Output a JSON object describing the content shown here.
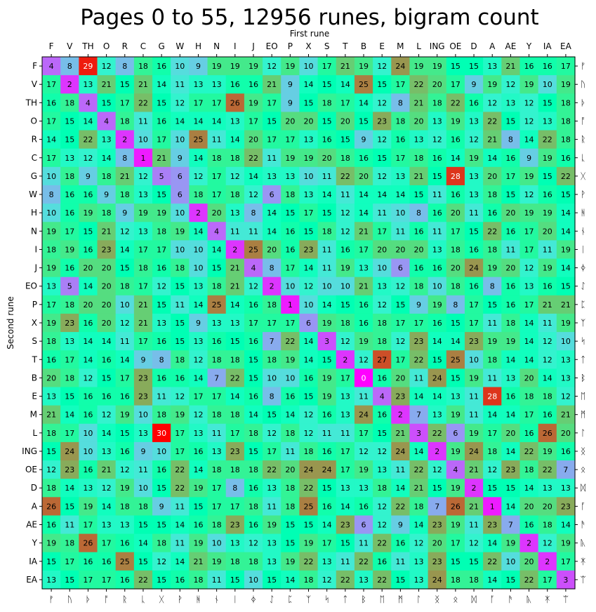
{
  "chart_data": {
    "type": "heatmap",
    "title": "Pages 0 to 55, 12956 runes, bigram count",
    "xlabel": "First rune",
    "ylabel": "Second rune",
    "x_labels": [
      "F",
      "V",
      "TH",
      "O",
      "R",
      "C",
      "G",
      "W",
      "H",
      "N",
      "I",
      "J",
      "EO",
      "P",
      "X",
      "S",
      "T",
      "B",
      "E",
      "M",
      "L",
      "ING",
      "OE",
      "D",
      "A",
      "AE",
      "Y",
      "IA",
      "EA"
    ],
    "y_labels": [
      "F",
      "V",
      "TH",
      "O",
      "R",
      "C",
      "G",
      "W",
      "H",
      "N",
      "I",
      "J",
      "EO",
      "P",
      "X",
      "S",
      "T",
      "B",
      "E",
      "M",
      "L",
      "ING",
      "OE",
      "D",
      "A",
      "AE",
      "Y",
      "IA",
      "EA"
    ],
    "runes": [
      "ᚠ",
      "ᚢ",
      "ᚦ",
      "ᚩ",
      "ᚱ",
      "ᚳ",
      "ᚷ",
      "ᚹ",
      "ᚻ",
      "ᚾ",
      "ᛁ",
      "ᛄ",
      "ᛇ",
      "ᛈ",
      "ᛉ",
      "ᛋ",
      "ᛏ",
      "ᛒ",
      "ᛖ",
      "ᛗ",
      "ᛚ",
      "ᛝ",
      "ᛟ",
      "ᛞ",
      "ᚪ",
      "ᚫ",
      "ᚣ",
      "ᛡ",
      "ᛠ"
    ],
    "colormap": "rainbow",
    "vmin": 0,
    "vmax": 30,
    "values": [
      [
        4,
        8,
        29,
        12,
        8,
        18,
        16,
        10,
        9,
        19,
        19,
        19,
        12,
        19,
        10,
        17,
        21,
        19,
        12,
        24,
        19,
        19,
        15,
        15,
        13,
        21,
        16,
        16,
        17
      ],
      [
        17,
        2,
        13,
        21,
        15,
        21,
        14,
        11,
        13,
        13,
        16,
        16,
        21,
        9,
        14,
        15,
        14,
        25,
        15,
        17,
        22,
        20,
        17,
        9,
        19,
        12,
        19,
        10,
        19
      ],
      [
        16,
        18,
        4,
        15,
        17,
        22,
        15,
        12,
        17,
        17,
        26,
        19,
        17,
        9,
        15,
        18,
        17,
        14,
        12,
        8,
        21,
        18,
        22,
        16,
        12,
        13,
        12,
        15,
        18
      ],
      [
        17,
        15,
        14,
        4,
        18,
        11,
        16,
        14,
        14,
        14,
        13,
        17,
        15,
        20,
        20,
        15,
        20,
        15,
        23,
        18,
        20,
        13,
        19,
        13,
        22,
        15,
        12,
        13,
        18
      ],
      [
        14,
        15,
        22,
        13,
        2,
        10,
        17,
        10,
        25,
        11,
        14,
        20,
        17,
        17,
        13,
        16,
        15,
        9,
        12,
        16,
        13,
        12,
        16,
        12,
        21,
        8,
        14,
        22,
        18
      ],
      [
        17,
        13,
        12,
        14,
        8,
        1,
        21,
        9,
        14,
        18,
        18,
        22,
        11,
        19,
        19,
        20,
        18,
        16,
        15,
        17,
        18,
        16,
        14,
        19,
        14,
        16,
        9,
        19,
        16
      ],
      [
        10,
        18,
        9,
        18,
        21,
        12,
        5,
        6,
        12,
        17,
        12,
        14,
        13,
        13,
        10,
        11,
        22,
        20,
        12,
        13,
        21,
        15,
        28,
        13,
        20,
        17,
        19,
        15,
        22
      ],
      [
        8,
        16,
        16,
        9,
        18,
        13,
        15,
        6,
        18,
        17,
        18,
        12,
        6,
        18,
        13,
        14,
        11,
        14,
        14,
        14,
        15,
        11,
        16,
        13,
        18,
        15,
        12,
        16,
        15
      ],
      [
        10,
        16,
        19,
        18,
        9,
        19,
        19,
        10,
        2,
        20,
        13,
        8,
        14,
        15,
        17,
        15,
        12,
        14,
        11,
        10,
        8,
        16,
        20,
        11,
        16,
        20,
        19,
        19,
        14
      ],
      [
        19,
        17,
        15,
        21,
        12,
        13,
        18,
        19,
        14,
        4,
        11,
        11,
        14,
        16,
        15,
        18,
        12,
        21,
        17,
        11,
        16,
        11,
        17,
        15,
        22,
        16,
        17,
        20,
        14
      ],
      [
        18,
        19,
        16,
        23,
        14,
        17,
        17,
        10,
        10,
        14,
        2,
        25,
        20,
        16,
        23,
        11,
        16,
        17,
        20,
        20,
        20,
        13,
        18,
        16,
        18,
        11,
        17,
        11,
        19
      ],
      [
        19,
        16,
        20,
        20,
        15,
        18,
        16,
        18,
        10,
        15,
        21,
        4,
        8,
        17,
        14,
        11,
        19,
        13,
        10,
        6,
        16,
        16,
        20,
        24,
        19,
        20,
        12,
        19,
        14
      ],
      [
        13,
        5,
        14,
        20,
        18,
        17,
        12,
        15,
        13,
        18,
        21,
        12,
        2,
        10,
        12,
        10,
        10,
        21,
        13,
        12,
        18,
        10,
        18,
        16,
        8,
        16,
        13,
        16,
        15
      ],
      [
        17,
        18,
        20,
        20,
        10,
        21,
        15,
        11,
        14,
        25,
        14,
        16,
        18,
        1,
        10,
        14,
        15,
        16,
        12,
        15,
        9,
        19,
        8,
        17,
        15,
        16,
        17,
        21,
        21
      ],
      [
        19,
        23,
        16,
        20,
        12,
        21,
        13,
        15,
        9,
        13,
        13,
        17,
        17,
        17,
        6,
        19,
        18,
        16,
        18,
        17,
        17,
        16,
        15,
        17,
        11,
        18,
        14,
        11,
        19
      ],
      [
        18,
        13,
        14,
        14,
        11,
        17,
        16,
        15,
        13,
        16,
        15,
        16,
        7,
        22,
        14,
        3,
        12,
        19,
        18,
        12,
        23,
        14,
        14,
        23,
        19,
        19,
        14,
        12,
        10
      ],
      [
        16,
        17,
        14,
        16,
        14,
        9,
        8,
        18,
        12,
        18,
        18,
        15,
        18,
        19,
        14,
        15,
        2,
        12,
        27,
        17,
        22,
        15,
        25,
        10,
        18,
        14,
        14,
        12,
        13
      ],
      [
        20,
        18,
        12,
        15,
        17,
        23,
        16,
        16,
        14,
        7,
        22,
        15,
        10,
        10,
        16,
        19,
        17,
        0,
        16,
        20,
        11,
        24,
        15,
        19,
        11,
        13,
        20,
        14,
        13
      ],
      [
        13,
        15,
        16,
        16,
        16,
        23,
        11,
        12,
        17,
        17,
        14,
        16,
        8,
        16,
        15,
        19,
        13,
        11,
        4,
        23,
        14,
        14,
        13,
        11,
        28,
        16,
        18,
        18,
        12
      ],
      [
        21,
        14,
        16,
        12,
        19,
        10,
        18,
        19,
        12,
        18,
        18,
        14,
        15,
        14,
        12,
        16,
        13,
        24,
        16,
        2,
        7,
        13,
        19,
        11,
        14,
        14,
        17,
        16,
        21
      ],
      [
        18,
        17,
        10,
        14,
        15,
        13,
        30,
        17,
        13,
        11,
        17,
        18,
        12,
        18,
        12,
        11,
        11,
        17,
        15,
        21,
        3,
        22,
        6,
        19,
        17,
        20,
        16,
        26,
        20
      ],
      [
        15,
        24,
        10,
        13,
        16,
        9,
        10,
        17,
        16,
        13,
        23,
        15,
        17,
        11,
        18,
        16,
        17,
        12,
        12,
        24,
        14,
        2,
        19,
        24,
        18,
        14,
        22,
        19,
        16
      ],
      [
        12,
        23,
        16,
        21,
        12,
        11,
        16,
        22,
        14,
        18,
        18,
        18,
        22,
        20,
        24,
        24,
        17,
        19,
        13,
        11,
        22,
        12,
        4,
        21,
        12,
        23,
        18,
        22,
        7
      ],
      [
        18,
        14,
        13,
        12,
        19,
        10,
        15,
        22,
        19,
        17,
        8,
        16,
        13,
        18,
        22,
        15,
        13,
        13,
        18,
        14,
        21,
        15,
        19,
        2,
        15,
        15,
        14,
        13,
        13
      ],
      [
        26,
        15,
        19,
        14,
        18,
        18,
        9,
        11,
        15,
        17,
        17,
        18,
        11,
        18,
        25,
        16,
        14,
        16,
        12,
        22,
        18,
        7,
        26,
        21,
        1,
        14,
        20,
        20,
        23
      ],
      [
        16,
        11,
        17,
        13,
        13,
        15,
        15,
        14,
        16,
        18,
        23,
        16,
        19,
        15,
        15,
        14,
        23,
        6,
        12,
        9,
        14,
        23,
        19,
        11,
        23,
        7,
        16,
        18,
        14
      ],
      [
        19,
        18,
        26,
        17,
        16,
        14,
        18,
        11,
        19,
        10,
        13,
        12,
        13,
        15,
        19,
        17,
        15,
        11,
        22,
        16,
        12,
        20,
        17,
        12,
        14,
        19,
        2,
        12,
        19
      ],
      [
        15,
        17,
        16,
        16,
        25,
        15,
        12,
        14,
        21,
        19,
        18,
        18,
        13,
        19,
        22,
        13,
        11,
        22,
        16,
        11,
        13,
        23,
        15,
        15,
        22,
        10,
        20,
        2,
        17
      ],
      [
        13,
        15,
        17,
        17,
        16,
        22,
        15,
        16,
        18,
        11,
        15,
        10,
        15,
        14,
        18,
        12,
        22,
        13,
        22,
        15,
        13,
        24,
        18,
        18,
        14,
        15,
        22,
        17,
        3
      ]
    ]
  }
}
